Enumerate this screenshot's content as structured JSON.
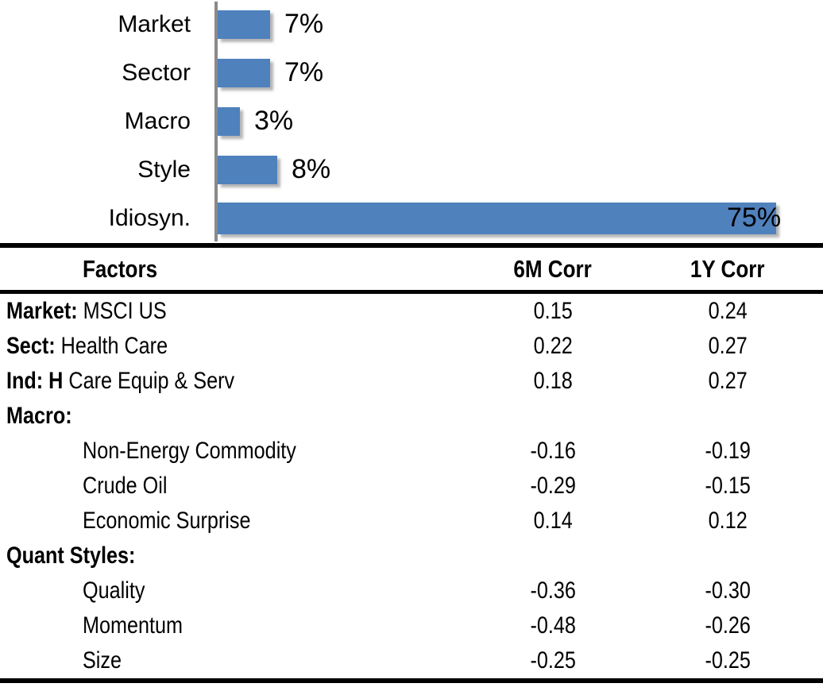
{
  "chart_data": {
    "type": "bar",
    "orientation": "horizontal",
    "title": "",
    "categories": [
      "Market",
      "Sector",
      "Macro",
      "Style",
      "Idiosyn."
    ],
    "values": [
      7,
      7,
      3,
      8,
      75
    ],
    "value_labels": [
      "7%",
      "7%",
      "3%",
      "8%",
      "75%"
    ],
    "xlim": [
      0,
      80
    ],
    "bar_color": "#4F81BD",
    "axis_color": "#8a8a8a",
    "grid": false,
    "legend": "none"
  },
  "table": {
    "headers": [
      "Factors",
      "6M Corr",
      "1Y Corr"
    ],
    "rows": [
      {
        "prefix": "Market:",
        "rest": " MSCI US",
        "corr_6m": "0.15",
        "corr_1y": "0.24"
      },
      {
        "prefix": "Sect:",
        "rest": " Health Care",
        "corr_6m": "0.22",
        "corr_1y": "0.27"
      },
      {
        "prefix": "Ind: H",
        "rest": " Care Equip & Serv",
        "corr_6m": "0.18",
        "corr_1y": "0.27"
      },
      {
        "prefix": "Macro:",
        "rest": "",
        "corr_6m": "",
        "corr_1y": ""
      },
      {
        "prefix": "",
        "rest": "Non-Energy Commodity",
        "corr_6m": "-0.16",
        "corr_1y": "-0.19"
      },
      {
        "prefix": "",
        "rest": "Crude Oil",
        "corr_6m": "-0.29",
        "corr_1y": "-0.15"
      },
      {
        "prefix": "",
        "rest": "Economic Surprise",
        "corr_6m": "0.14",
        "corr_1y": "0.12"
      },
      {
        "prefix": "Quant Styles:",
        "rest": "",
        "corr_6m": "",
        "corr_1y": ""
      },
      {
        "prefix": "",
        "rest": "Quality",
        "corr_6m": "-0.36",
        "corr_1y": "-0.30"
      },
      {
        "prefix": "",
        "rest": "Momentum",
        "corr_6m": "-0.48",
        "corr_1y": "-0.26"
      },
      {
        "prefix": "",
        "rest": "Size",
        "corr_6m": "-0.25",
        "corr_1y": "-0.25"
      }
    ]
  }
}
